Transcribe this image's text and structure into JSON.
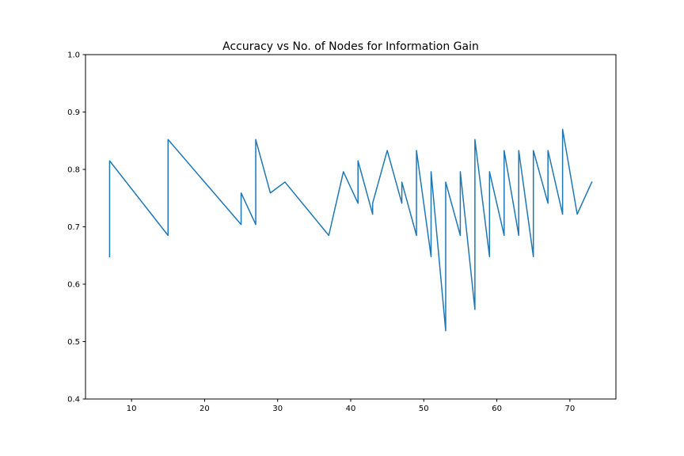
{
  "chart_data": {
    "type": "line",
    "title": "Accuracy vs No. of Nodes for Information Gain",
    "xlabel": "",
    "ylabel": "",
    "xlim": [
      3.7,
      76.3
    ],
    "ylim": [
      0.4,
      1.0
    ],
    "xticks": [
      10,
      20,
      30,
      40,
      50,
      60,
      70
    ],
    "yticks": [
      0.4,
      0.5,
      0.6,
      0.7,
      0.8,
      0.9,
      1.0
    ],
    "grid": false,
    "legend": "none",
    "series": [
      {
        "color": "#1f77b4",
        "x": [
          7,
          7,
          15,
          15,
          25,
          25,
          27,
          27,
          29,
          31,
          37,
          39,
          41,
          41,
          43,
          43,
          45,
          47,
          47,
          49,
          49,
          51,
          51,
          53,
          53,
          55,
          55,
          57,
          57,
          59,
          59,
          61,
          61,
          63,
          63,
          65,
          65,
          67,
          67,
          69,
          69,
          71,
          73
        ],
        "y": [
          0.648,
          0.815,
          0.685,
          0.852,
          0.704,
          0.759,
          0.704,
          0.852,
          0.759,
          0.778,
          0.685,
          0.796,
          0.741,
          0.815,
          0.722,
          0.741,
          0.833,
          0.741,
          0.778,
          0.685,
          0.833,
          0.648,
          0.796,
          0.519,
          0.778,
          0.685,
          0.796,
          0.556,
          0.852,
          0.648,
          0.796,
          0.685,
          0.833,
          0.685,
          0.833,
          0.648,
          0.833,
          0.741,
          0.833,
          0.722,
          0.87,
          0.722,
          0.778
        ]
      }
    ]
  }
}
